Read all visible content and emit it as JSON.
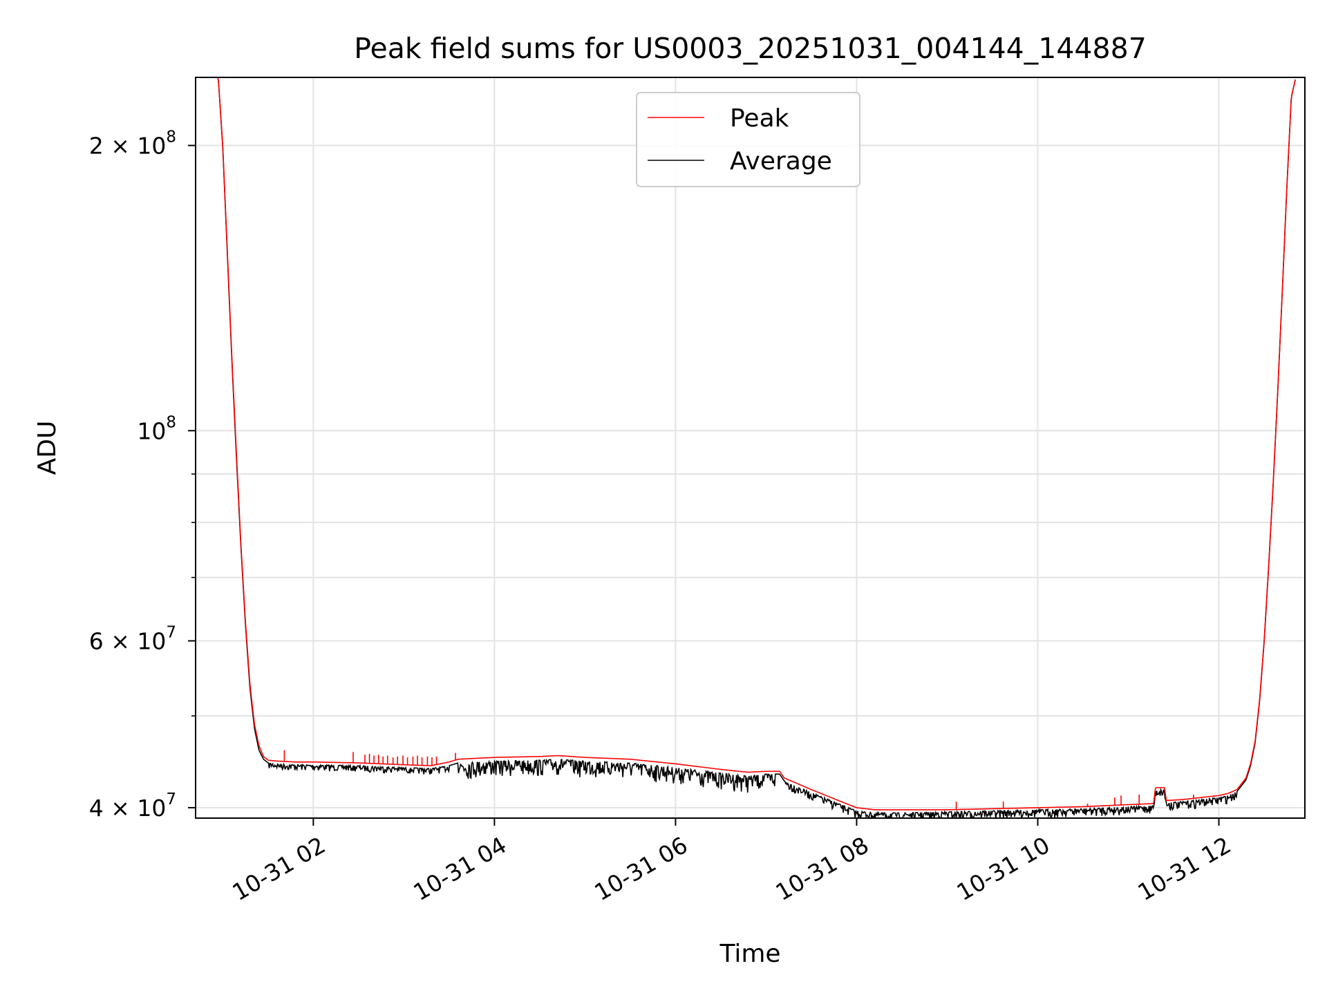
{
  "chart_data": {
    "type": "line",
    "title": "Peak field sums for US0003_20251031_004144_144887",
    "xlabel": "Time",
    "ylabel": "ADU",
    "yscale": "log",
    "grid": true,
    "legend_position": "top-center",
    "x_unit": "hours since 2025-10-31 00:00",
    "xlim": [
      0.7,
      12.95
    ],
    "ylim": [
      39000000,
      236000000
    ],
    "x_ticks": [
      {
        "value": 2,
        "label": "10-31 02"
      },
      {
        "value": 4,
        "label": "10-31 04"
      },
      {
        "value": 6,
        "label": "10-31 06"
      },
      {
        "value": 8,
        "label": "10-31 08"
      },
      {
        "value": 10,
        "label": "10-31 10"
      },
      {
        "value": 12,
        "label": "10-31 12"
      }
    ],
    "y_ticks_major": [
      {
        "value": 40000000,
        "base": "4 × 10",
        "exp": "7"
      },
      {
        "value": 60000000,
        "base": "6 × 10",
        "exp": "7"
      },
      {
        "value": 100000000,
        "base": "10",
        "exp": "8"
      },
      {
        "value": 200000000,
        "base": "2 × 10",
        "exp": "8"
      }
    ],
    "y_ticks_minor": [
      50000000,
      70000000,
      80000000,
      90000000
    ],
    "series": [
      {
        "name": "Peak",
        "color": "#ff0000",
        "x": [
          0.87,
          0.95,
          1.0,
          1.05,
          1.1,
          1.15,
          1.2,
          1.25,
          1.3,
          1.35,
          1.4,
          1.45,
          1.5,
          1.6,
          1.8,
          2.0,
          2.5,
          3.0,
          3.3,
          3.5,
          3.6,
          3.8,
          4.0,
          4.5,
          4.7,
          5.0,
          5.5,
          6.0,
          6.5,
          6.8,
          7.0,
          7.15,
          7.2,
          7.5,
          7.8,
          8.0,
          8.2,
          8.5,
          9.0,
          9.5,
          10.0,
          10.5,
          11.0,
          11.28,
          11.3,
          11.4,
          11.42,
          11.6,
          11.8,
          12.0,
          12.1,
          12.2,
          12.3,
          12.35,
          12.4,
          12.45,
          12.5,
          12.55,
          12.6,
          12.65,
          12.7,
          12.75,
          12.8,
          12.85
        ],
        "values": [
          236000000,
          236000000,
          200000000,
          155000000,
          120000000,
          95000000,
          76000000,
          63000000,
          54000000,
          49000000,
          46500000,
          45300000,
          44900000,
          44800000,
          44700000,
          44700000,
          44600000,
          44400000,
          44300000,
          44700000,
          45000000,
          45100000,
          45200000,
          45300000,
          45400000,
          45200000,
          45000000,
          44500000,
          43900000,
          43600000,
          43700000,
          43700000,
          43000000,
          41800000,
          40700000,
          40000000,
          39800000,
          39800000,
          39800000,
          39900000,
          40000000,
          40100000,
          40300000,
          40400000,
          42000000,
          42000000,
          40700000,
          40800000,
          41000000,
          41200000,
          41400000,
          41800000,
          43000000,
          44500000,
          47000000,
          52000000,
          60000000,
          72000000,
          88000000,
          110000000,
          140000000,
          180000000,
          225000000,
          236000000
        ]
      },
      {
        "name": "Average",
        "color": "#000000",
        "x": [
          0.87,
          0.95,
          1.0,
          1.05,
          1.1,
          1.15,
          1.2,
          1.25,
          1.3,
          1.35,
          1.4,
          1.45,
          1.5,
          1.6,
          1.8,
          2.0,
          2.5,
          3.0,
          3.3,
          3.5,
          3.6,
          3.8,
          4.0,
          4.5,
          4.7,
          5.0,
          5.5,
          6.0,
          6.5,
          6.8,
          7.0,
          7.15,
          7.2,
          7.5,
          7.8,
          8.0,
          8.2,
          8.5,
          9.0,
          9.5,
          10.0,
          10.5,
          11.0,
          11.28,
          11.3,
          11.4,
          11.42,
          11.6,
          11.8,
          12.0,
          12.1,
          12.2,
          12.3,
          12.35,
          12.4,
          12.45,
          12.5,
          12.55,
          12.6,
          12.65,
          12.7,
          12.75,
          12.8,
          12.85
        ],
        "values": [
          236000000,
          236000000,
          199000000,
          154000000,
          119000000,
          94000000,
          75500000,
          62500000,
          53500000,
          48500000,
          46000000,
          45000000,
          44600000,
          44500000,
          44400000,
          44400000,
          44300000,
          44100000,
          44000000,
          44300000,
          44600000,
          44700000,
          44800000,
          44900000,
          45000000,
          44800000,
          44600000,
          44100000,
          43500000,
          43200000,
          43400000,
          43400000,
          42700000,
          41500000,
          40400000,
          39700000,
          39500000,
          39500000,
          39600000,
          39700000,
          39800000,
          39900000,
          40100000,
          40200000,
          41800000,
          41800000,
          40500000,
          40600000,
          40800000,
          41000000,
          41200000,
          41600000,
          42800000,
          44300000,
          46800000,
          51800000,
          59800000,
          71800000,
          87800000,
          109800000,
          139800000,
          179800000,
          224800000,
          236000000
        ]
      }
    ],
    "peak_spikes": [
      {
        "x": 1.68,
        "value": 46000000
      },
      {
        "x": 2.44,
        "value": 45800000
      },
      {
        "x": 2.57,
        "value": 45500000
      },
      {
        "x": 2.62,
        "value": 45600000
      },
      {
        "x": 2.67,
        "value": 45400000
      },
      {
        "x": 2.72,
        "value": 45500000
      },
      {
        "x": 2.77,
        "value": 45300000
      },
      {
        "x": 2.82,
        "value": 45400000
      },
      {
        "x": 2.88,
        "value": 45200000
      },
      {
        "x": 2.93,
        "value": 45300000
      },
      {
        "x": 2.99,
        "value": 45400000
      },
      {
        "x": 3.04,
        "value": 45200000
      },
      {
        "x": 3.1,
        "value": 45300000
      },
      {
        "x": 3.15,
        "value": 45400000
      },
      {
        "x": 3.2,
        "value": 45200000
      },
      {
        "x": 3.26,
        "value": 45300000
      },
      {
        "x": 3.31,
        "value": 45200000
      },
      {
        "x": 3.36,
        "value": 45300000
      },
      {
        "x": 3.57,
        "value": 45700000
      },
      {
        "x": 9.1,
        "value": 40600000
      },
      {
        "x": 9.62,
        "value": 40600000
      },
      {
        "x": 10.55,
        "value": 40400000
      },
      {
        "x": 10.85,
        "value": 41000000
      },
      {
        "x": 10.92,
        "value": 41200000
      },
      {
        "x": 11.12,
        "value": 41300000
      },
      {
        "x": 11.72,
        "value": 41300000
      }
    ],
    "avg_noise_band": [
      {
        "x0": 1.5,
        "x1": 3.5,
        "depth": 0.015
      },
      {
        "x0": 3.6,
        "x1": 7.1,
        "depth": 0.04
      },
      {
        "x0": 7.2,
        "x1": 12.2,
        "depth": 0.02
      }
    ]
  }
}
